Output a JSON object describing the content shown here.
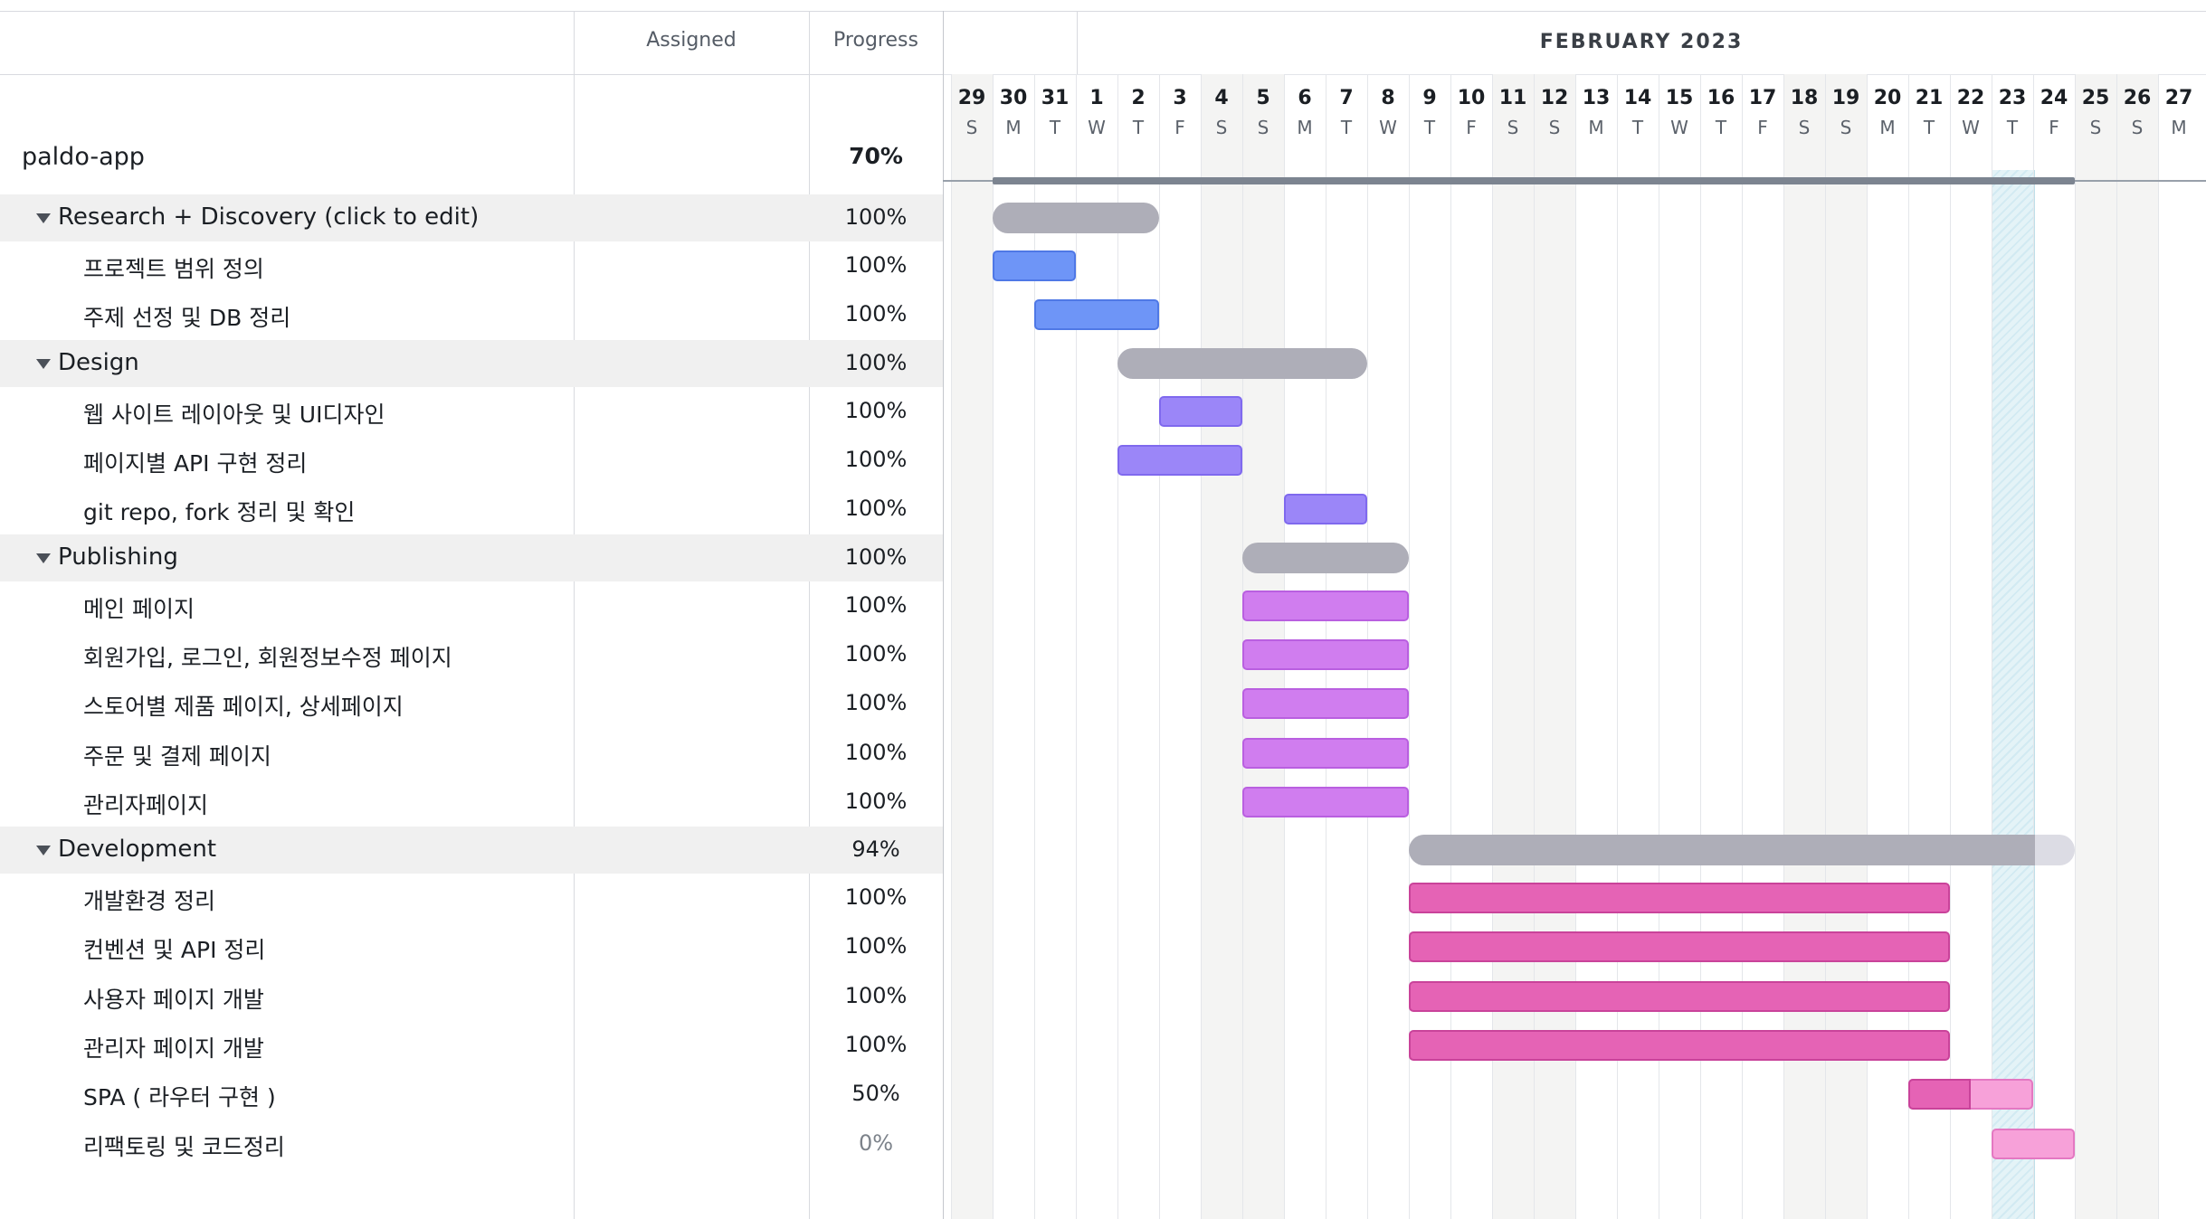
{
  "header": {
    "assigned_label": "Assigned",
    "progress_label": "Progress",
    "month_label": "FEBRUARY 2023"
  },
  "days": [
    {
      "n": "29",
      "w": "S",
      "weekend": true
    },
    {
      "n": "30",
      "w": "M",
      "weekend": false
    },
    {
      "n": "31",
      "w": "T",
      "weekend": false
    },
    {
      "n": "1",
      "w": "W",
      "weekend": false
    },
    {
      "n": "2",
      "w": "T",
      "weekend": false
    },
    {
      "n": "3",
      "w": "F",
      "weekend": false
    },
    {
      "n": "4",
      "w": "S",
      "weekend": true
    },
    {
      "n": "5",
      "w": "S",
      "weekend": true
    },
    {
      "n": "6",
      "w": "M",
      "weekend": false
    },
    {
      "n": "7",
      "w": "T",
      "weekend": false
    },
    {
      "n": "8",
      "w": "W",
      "weekend": false
    },
    {
      "n": "9",
      "w": "T",
      "weekend": false
    },
    {
      "n": "10",
      "w": "F",
      "weekend": false
    },
    {
      "n": "11",
      "w": "S",
      "weekend": true
    },
    {
      "n": "12",
      "w": "S",
      "weekend": true
    },
    {
      "n": "13",
      "w": "M",
      "weekend": false
    },
    {
      "n": "14",
      "w": "T",
      "weekend": false
    },
    {
      "n": "15",
      "w": "W",
      "weekend": false
    },
    {
      "n": "16",
      "w": "T",
      "weekend": false
    },
    {
      "n": "17",
      "w": "F",
      "weekend": false
    },
    {
      "n": "18",
      "w": "S",
      "weekend": true
    },
    {
      "n": "19",
      "w": "S",
      "weekend": true
    },
    {
      "n": "20",
      "w": "M",
      "weekend": false
    },
    {
      "n": "21",
      "w": "T",
      "weekend": false
    },
    {
      "n": "22",
      "w": "W",
      "weekend": false
    },
    {
      "n": "23",
      "w": "T",
      "weekend": false,
      "today": true
    },
    {
      "n": "24",
      "w": "F",
      "weekend": false
    },
    {
      "n": "25",
      "w": "S",
      "weekend": true
    },
    {
      "n": "26",
      "w": "S",
      "weekend": true
    },
    {
      "n": "27",
      "w": "M",
      "weekend": false
    }
  ],
  "project": {
    "name": "paldo-app",
    "progress": "70%",
    "start_day": 1,
    "end_day": 27
  },
  "rows": [
    {
      "type": "group",
      "name": "Research + Discovery (click to edit)",
      "progress": "100%",
      "start": 1,
      "end": 5,
      "pct_value": 100
    },
    {
      "type": "task",
      "name": "프로젝트 범위 정의",
      "progress": "100%",
      "start": 1,
      "end": 3,
      "color": "blue"
    },
    {
      "type": "task",
      "name": "주제 선정 및 DB 정리",
      "progress": "100%",
      "start": 2,
      "end": 5,
      "color": "blue"
    },
    {
      "type": "group",
      "name": "Design",
      "progress": "100%",
      "start": 4,
      "end": 10,
      "pct_value": 100
    },
    {
      "type": "task",
      "name": "웹 사이트 레이아웃 및 UI디자인",
      "progress": "100%",
      "start": 5,
      "end": 7,
      "color": "violet"
    },
    {
      "type": "task",
      "name": "페이지별 API 구현 정리",
      "progress": "100%",
      "start": 4,
      "end": 7,
      "color": "violet"
    },
    {
      "type": "task",
      "name": "git repo, fork 정리 및 확인",
      "progress": "100%",
      "start": 8,
      "end": 10,
      "color": "violet"
    },
    {
      "type": "group",
      "name": "Publishing",
      "progress": "100%",
      "start": 7,
      "end": 11,
      "pct_value": 100
    },
    {
      "type": "task",
      "name": "메인 페이지",
      "progress": "100%",
      "start": 7,
      "end": 11,
      "color": "lilac"
    },
    {
      "type": "task",
      "name": "회원가입, 로그인, 회원정보수정 페이지",
      "progress": "100%",
      "start": 7,
      "end": 11,
      "color": "lilac"
    },
    {
      "type": "task",
      "name": "스토어별 제품 페이지, 상세페이지",
      "progress": "100%",
      "start": 7,
      "end": 11,
      "color": "lilac"
    },
    {
      "type": "task",
      "name": "주문 및 결제 페이지",
      "progress": "100%",
      "start": 7,
      "end": 11,
      "color": "lilac"
    },
    {
      "type": "task",
      "name": "관리자페이지",
      "progress": "100%",
      "start": 7,
      "end": 11,
      "color": "lilac"
    },
    {
      "type": "group",
      "name": "Development",
      "progress": "94%",
      "start": 11,
      "end": 27,
      "pct_value": 94
    },
    {
      "type": "task",
      "name": "개발환경 정리",
      "progress": "100%",
      "start": 11,
      "end": 24,
      "color": "pink"
    },
    {
      "type": "task",
      "name": "컨벤션 및 API 정리",
      "progress": "100%",
      "start": 11,
      "end": 24,
      "color": "pink"
    },
    {
      "type": "task",
      "name": "사용자 페이지 개발",
      "progress": "100%",
      "start": 11,
      "end": 24,
      "color": "pink"
    },
    {
      "type": "task",
      "name": "관리자 페이지 개발",
      "progress": "100%",
      "start": 11,
      "end": 24,
      "color": "pink"
    },
    {
      "type": "task",
      "name": "SPA ( 라우터 구현 )",
      "progress": "50%",
      "start": 23,
      "end": 26,
      "color": "pink",
      "pct_value": 50
    },
    {
      "type": "task",
      "name": "리팩토링 및 코드정리",
      "progress": "0%",
      "start": 25,
      "end": 27,
      "color": "lightpink",
      "pct_value": 0
    }
  ],
  "colors": {
    "blue": "#6e95f7",
    "violet": "#9b86f8",
    "lilac": "#d07def",
    "pink": "#e563b5",
    "lightpink": "#f7a1d9",
    "group": "#aeaeb8"
  }
}
